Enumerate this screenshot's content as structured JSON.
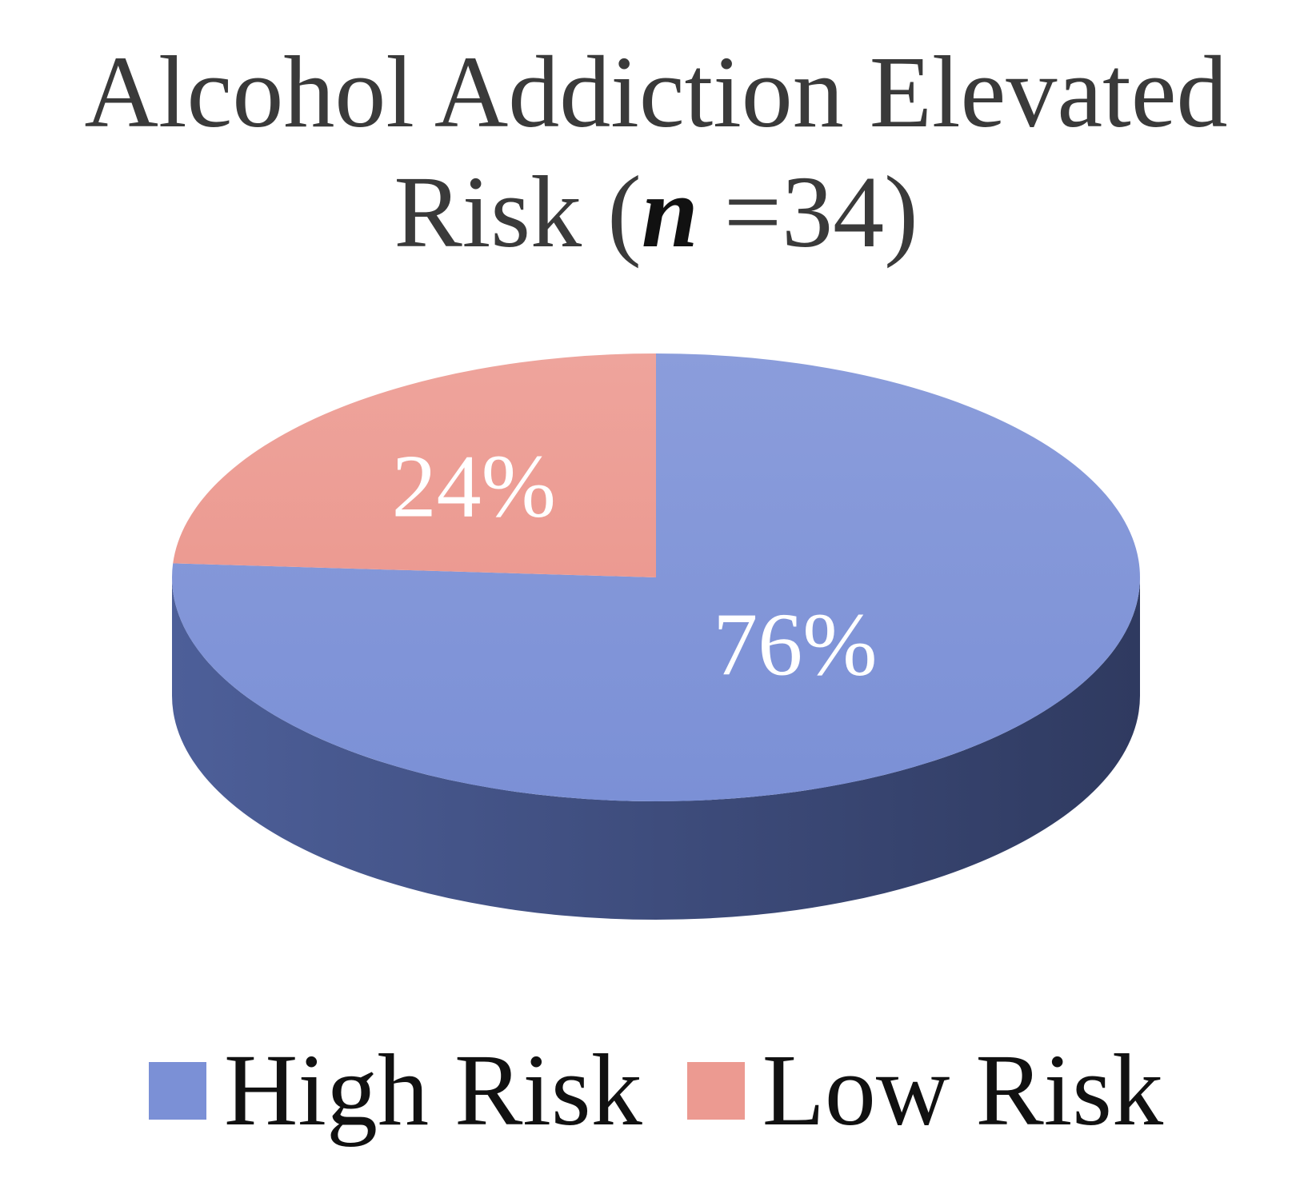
{
  "chart_data": {
    "type": "pie",
    "title_line1": "Alcohol Addiction Elevated",
    "title_line2_prefix": "Risk (",
    "title_n_symbol": "n",
    "title_line2_suffix": " =34)",
    "categories": [
      "High Risk",
      "Low Risk"
    ],
    "values": [
      76,
      24
    ],
    "data_labels": [
      "76%",
      "24%"
    ],
    "colors": [
      "#7b90d6",
      "#ec9a91"
    ],
    "side_colors": [
      "#4d5f99",
      "#a86a64"
    ],
    "legend_position": "bottom",
    "style": "3d"
  }
}
